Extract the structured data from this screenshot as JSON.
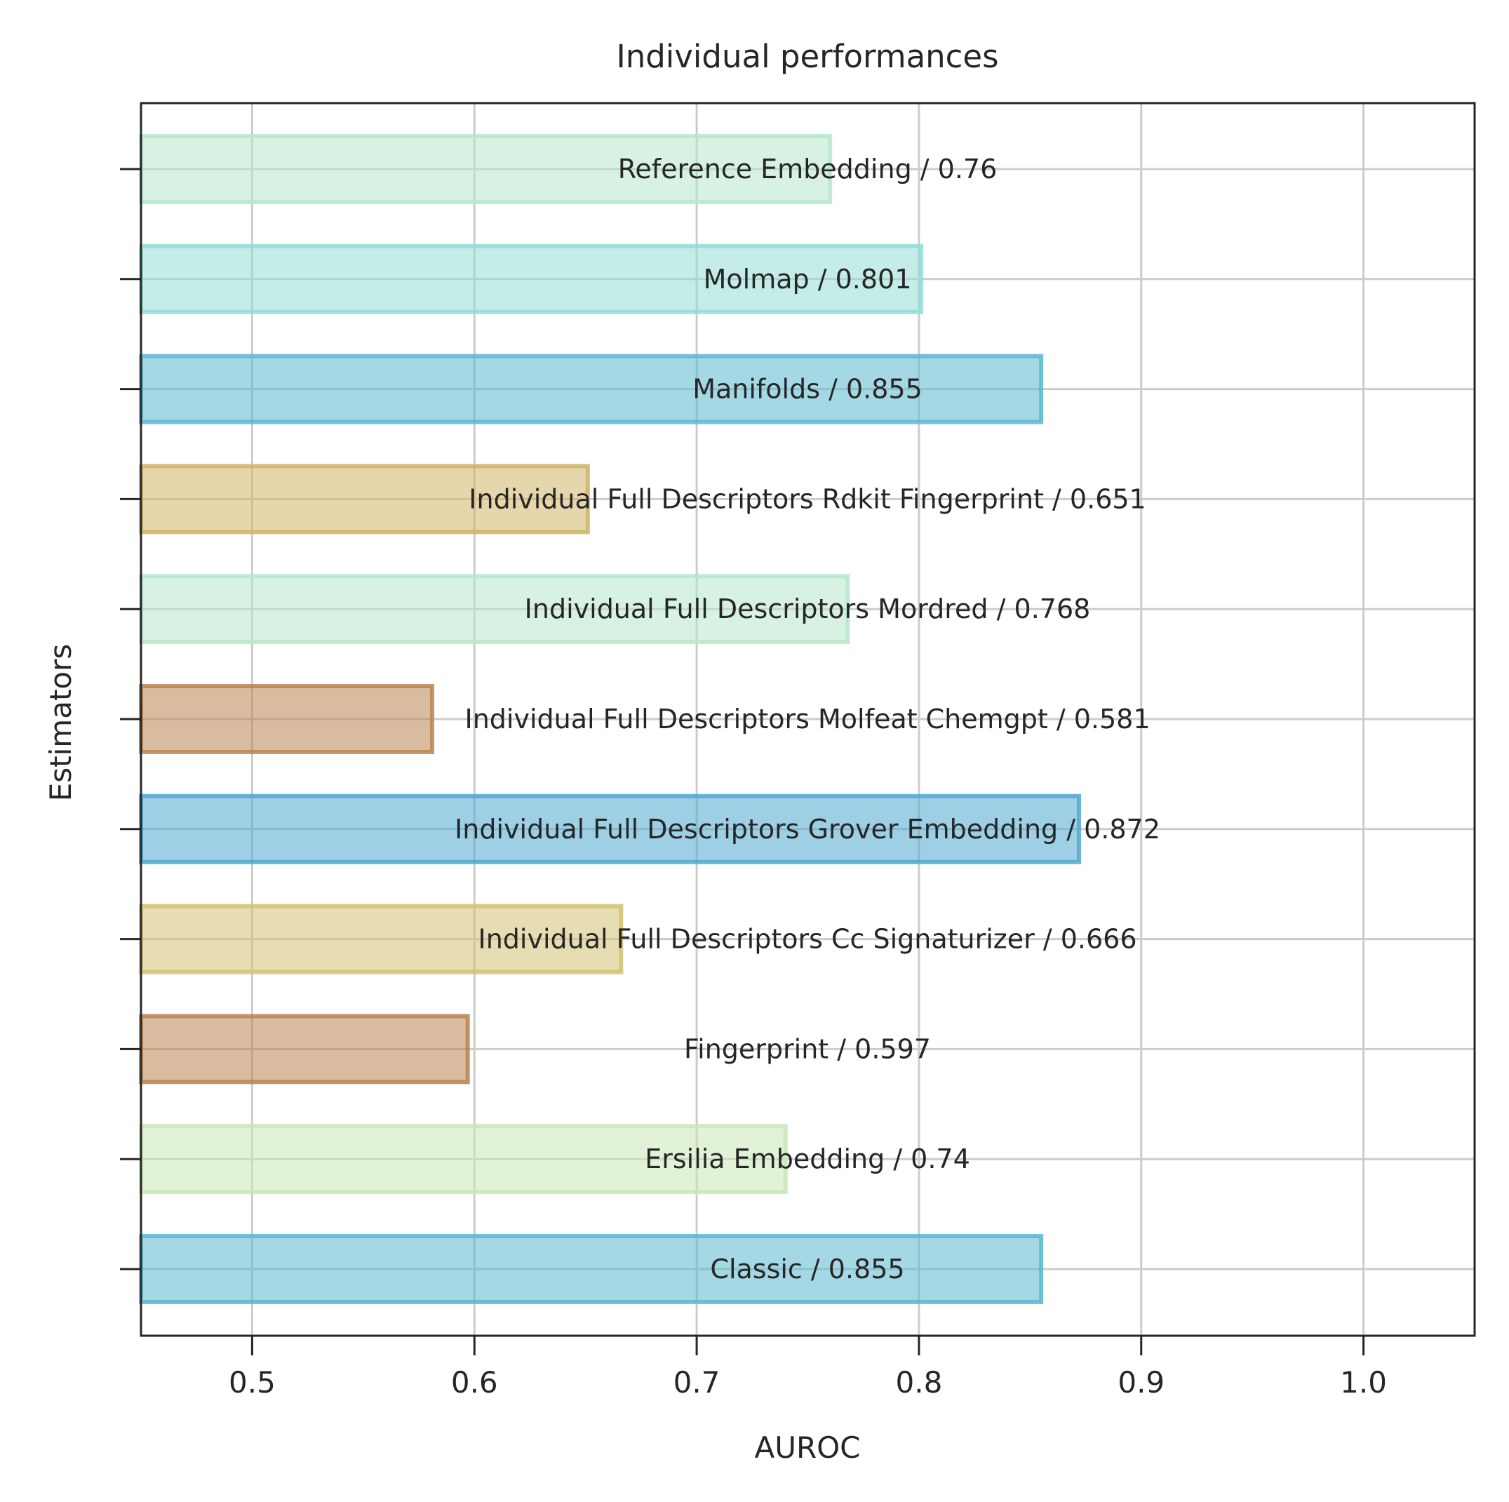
{
  "chart_data": {
    "type": "bar",
    "orientation": "horizontal",
    "title": "Individual performances",
    "xlabel": "AUROC",
    "ylabel": "Estimators",
    "xlim": [
      0.45,
      1.05
    ],
    "xticks": [
      "0.5",
      "0.6",
      "0.7",
      "0.8",
      "0.9",
      "1.0"
    ],
    "grid": true,
    "bars": [
      {
        "category": "Reference Embedding",
        "value": 0.76,
        "label": "Reference Embedding / 0.76",
        "color": "#b6e8cb"
      },
      {
        "category": "Molmap",
        "value": 0.801,
        "label": "Molmap / 0.801",
        "color": "#93dcd6"
      },
      {
        "category": "Manifolds",
        "value": 0.855,
        "label": "Manifolds / 0.855",
        "color": "#5bb8d0"
      },
      {
        "category": "Individual Full Descriptors Rdkit Fingerprint",
        "value": 0.651,
        "label": "Individual Full Descriptors Rdkit Fingerprint / 0.651",
        "color": "#cfb466"
      },
      {
        "category": "Individual Full Descriptors Mordred",
        "value": 0.768,
        "label": "Individual Full Descriptors Mordred / 0.768",
        "color": "#b6e8cb"
      },
      {
        "category": "Individual Full Descriptors Molfeat Chemgpt",
        "value": 0.581,
        "label": "Individual Full Descriptors Molfeat Chemgpt / 0.581",
        "color": "#b98451"
      },
      {
        "category": "Individual Full Descriptors Grover Embedding",
        "value": 0.872,
        "label": "Individual Full Descriptors Grover Embedding / 0.872",
        "color": "#4fa9cf"
      },
      {
        "category": "Individual Full Descriptors Cc Signaturizer",
        "value": 0.666,
        "label": "Individual Full Descriptors Cc Signaturizer / 0.666",
        "color": "#d2c272"
      },
      {
        "category": "Fingerprint",
        "value": 0.597,
        "label": "Fingerprint / 0.597",
        "color": "#b98451"
      },
      {
        "category": "Ersilia Embedding",
        "value": 0.74,
        "label": "Ersilia Embedding / 0.74",
        "color": "#c9e8b6"
      },
      {
        "category": "Classic",
        "value": 0.855,
        "label": "Classic / 0.855",
        "color": "#5bb8d0"
      }
    ]
  }
}
